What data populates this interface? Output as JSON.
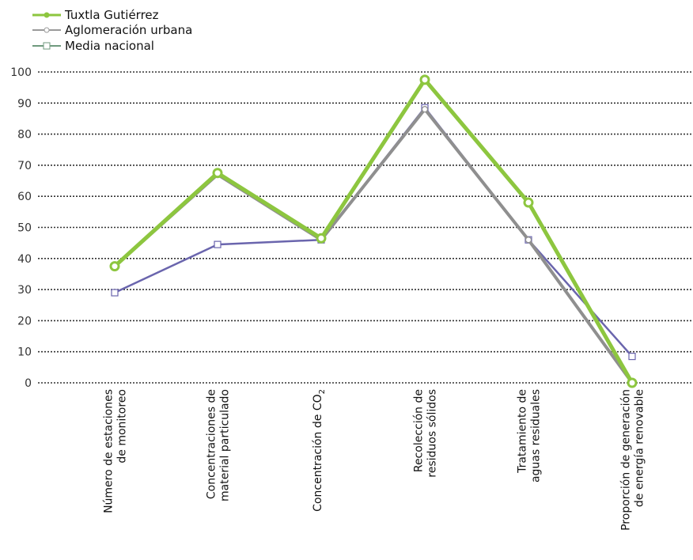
{
  "chart_data": {
    "type": "line",
    "title": "",
    "xlabel": "",
    "ylabel": "",
    "ylim": [
      0,
      100
    ],
    "yticks": [
      0,
      10,
      20,
      30,
      40,
      50,
      60,
      70,
      80,
      90,
      100
    ],
    "grid": "horizontal dotted",
    "legend_position": "top-left",
    "categories": [
      [
        "Número de estaciones",
        "de monitoreo"
      ],
      [
        "Concentraciones de",
        "material particulado"
      ],
      [
        "Concentración de CO",
        "2"
      ],
      [
        "Recolección de",
        "residuos sólidos"
      ],
      [
        "Tratamiento de",
        "aguas residuales"
      ],
      [
        "Proporción de generación",
        "de energía renovable"
      ]
    ],
    "series": [
      {
        "name": "Media nacional",
        "color": "#6a65ad",
        "legend_color": "#6f9a7d",
        "marker": "square",
        "values": [
          29,
          44.5,
          46,
          88.5,
          46,
          8.5
        ]
      },
      {
        "name": "Aglomeración urbana",
        "color": "#8f8f8f",
        "marker": "circle-open",
        "values": [
          37.5,
          67,
          46,
          88,
          46,
          0
        ]
      },
      {
        "name": "Tuxtla Gutiérrez",
        "color": "#8dc63f",
        "marker": "circle-filled",
        "values": [
          37.5,
          67.5,
          46.5,
          97.5,
          58,
          0
        ]
      }
    ]
  }
}
